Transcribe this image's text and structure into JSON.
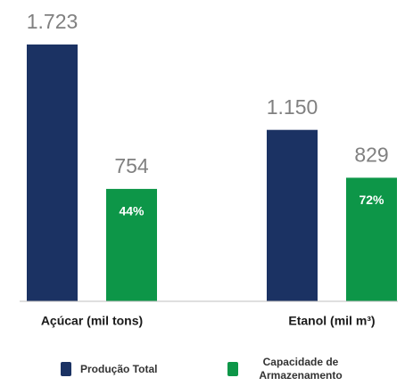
{
  "chart_data": {
    "type": "bar",
    "categories": [
      "Açúcar (mil tons)",
      "Etanol (mil m³)"
    ],
    "series": [
      {
        "name": "Produção Total",
        "color": "#1b3263",
        "values": [
          1723,
          1150
        ],
        "value_labels": [
          "1.723",
          "1.150"
        ]
      },
      {
        "name": "Capacidade de Armazenamento",
        "color": "#0d9648",
        "values": [
          754,
          829
        ],
        "inner_labels": [
          "44%",
          "72%"
        ]
      }
    ],
    "ylim": [
      0,
      1800
    ]
  }
}
